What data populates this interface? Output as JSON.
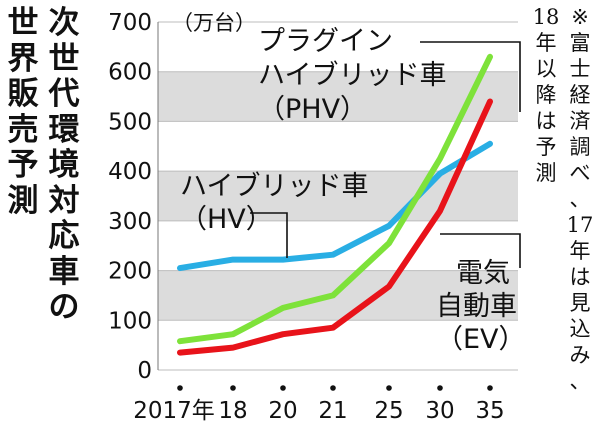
{
  "title": "次世代環境対応車の世界販売予測",
  "note": "※富士経済調べ、17年は見込み、18年以降は予測",
  "chart_data": {
    "type": "line",
    "title": "次世代環境対応車の世界販売予測",
    "ylabel": "（万台）",
    "xlabel": "",
    "categories": [
      "2017年",
      "18",
      "20",
      "21",
      "25",
      "30",
      "35"
    ],
    "ylim": [
      0,
      700
    ],
    "yticks": [
      0,
      100,
      200,
      300,
      400,
      500,
      600,
      700
    ],
    "grid": "horizontal-bands",
    "series": [
      {
        "name": "ハイブリッド車（HV）",
        "label_lines": [
          "ハイブリッド車",
          "（HV）"
        ],
        "color": "#29aee4",
        "values": [
          205,
          222,
          222,
          232,
          290,
          395,
          455
        ]
      },
      {
        "name": "プラグインハイブリッド車（PHV）",
        "label_lines": [
          "プラグイン",
          "ハイブリッド車",
          "（PHV）"
        ],
        "color": "#7ee23a",
        "values": [
          58,
          72,
          125,
          150,
          255,
          425,
          630
        ]
      },
      {
        "name": "電気自動車（EV）",
        "label_lines": [
          "電気",
          "自動車",
          "（EV）"
        ],
        "color": "#e8131a",
        "values": [
          35,
          45,
          72,
          85,
          168,
          320,
          540
        ]
      }
    ]
  }
}
